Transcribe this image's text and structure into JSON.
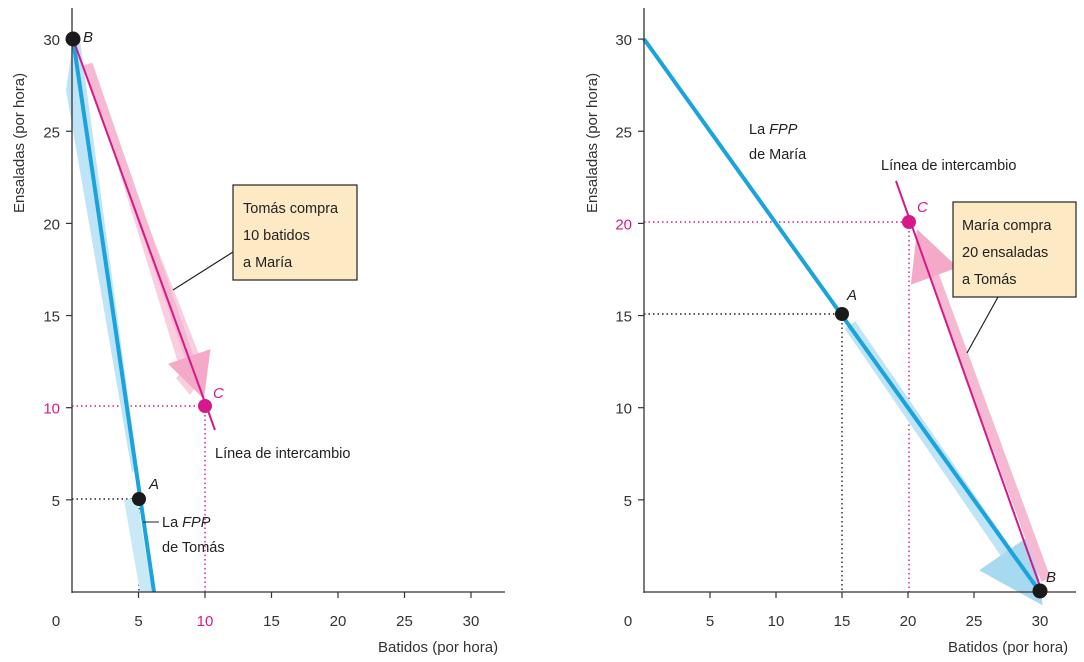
{
  "colors": {
    "ppf": "#1aa3dc",
    "ppf_band": "#bfe4f6",
    "trade": "#d6188b",
    "trade_band": "#f9cfe0",
    "point_c": "#d6188b",
    "point": "#1a1a1a",
    "callout_bg": "#fde9c4",
    "axis": "#333333"
  },
  "chart_data": [
    {
      "type": "line",
      "xlabel": "Batidos (por hora)",
      "ylabel": "Ensaladas (por hora)",
      "xlim": [
        0,
        33
      ],
      "ylim": [
        0,
        32
      ],
      "xticks": [
        0,
        5,
        10,
        15,
        20,
        25,
        30
      ],
      "yticks": [
        5,
        10,
        15,
        20,
        25,
        30
      ],
      "highlight_ticks": {
        "x": [
          10
        ],
        "y": [
          10
        ]
      },
      "series": [
        {
          "name": "La FPP de Tomás",
          "points": [
            [
              0,
              30
            ],
            [
              6,
              0
            ]
          ]
        },
        {
          "name": "Línea de intercambio",
          "points": [
            [
              0,
              30
            ],
            [
              10.8,
              9
            ]
          ]
        }
      ],
      "points": [
        {
          "label": "B",
          "x": 0,
          "y": 30
        },
        {
          "label": "A",
          "x": 5,
          "y": 5
        },
        {
          "label": "C",
          "x": 10,
          "y": 10
        }
      ],
      "annotations": {
        "ppf_label_1": "La ",
        "ppf_label_fpp": "FPP",
        "ppf_label_2": "de Tomás",
        "trade_label": "Línea de intercambio",
        "callout": [
          "Tomás compra",
          "10 batidos",
          "a María"
        ]
      }
    },
    {
      "type": "line",
      "xlabel": "Batidos (por hora)",
      "ylabel": "Ensaladas (por hora)",
      "xlim": [
        0,
        33
      ],
      "ylim": [
        0,
        32
      ],
      "xticks": [
        0,
        5,
        10,
        15,
        20,
        25,
        30
      ],
      "yticks": [
        5,
        10,
        15,
        20,
        25,
        30
      ],
      "highlight_ticks": {
        "x": [],
        "y": [
          20
        ]
      },
      "series": [
        {
          "name": "La FPP de María",
          "points": [
            [
              0,
              30
            ],
            [
              30,
              0
            ]
          ]
        },
        {
          "name": "Línea de intercambio",
          "points": [
            [
              19.3,
              22.8
            ],
            [
              30,
              0
            ]
          ]
        }
      ],
      "points": [
        {
          "label": "A",
          "x": 15,
          "y": 15
        },
        {
          "label": "C",
          "x": 20,
          "y": 20
        },
        {
          "label": "B",
          "x": 30,
          "y": 0
        }
      ],
      "annotations": {
        "ppf_label_1": "La ",
        "ppf_label_fpp": "FPP",
        "ppf_label_2": "de María",
        "trade_label": "Línea de intercambio",
        "callout": [
          "María compra",
          "20 ensaladas",
          "a Tomás"
        ]
      }
    }
  ]
}
